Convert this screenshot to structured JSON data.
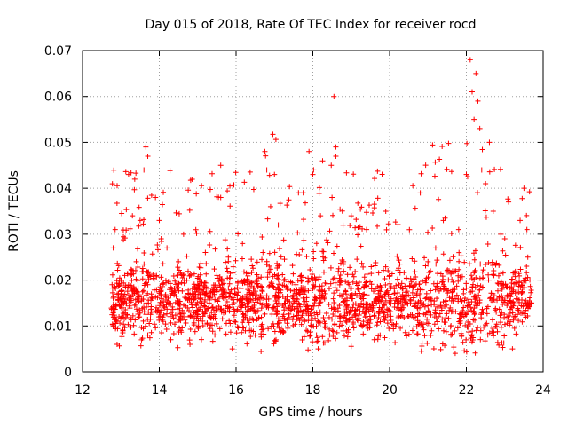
{
  "chart_data": {
    "type": "scatter",
    "title": "Day 015 of 2018, Rate Of TEC Index for receiver rocd",
    "xlabel": "GPS time / hours",
    "ylabel": "ROTI / TECUs",
    "xlim": [
      12,
      24
    ],
    "ylim": [
      0,
      0.07
    ],
    "xticks": [
      "12",
      "14",
      "16",
      "18",
      "20",
      "22",
      "24"
    ],
    "yticks": [
      "0",
      "0.01",
      "0.02",
      "0.03",
      "0.04",
      "0.05",
      "0.06",
      "0.07"
    ],
    "grid": true,
    "legend": "none",
    "marker": "+",
    "series": [
      {
        "name": "ROTI",
        "color": "#ff0000",
        "x_range": [
          12.75,
          23.7
        ],
        "points": [
          [
            12.8,
            0.027
          ],
          [
            12.85,
            0.031
          ],
          [
            12.9,
            0.011
          ],
          [
            12.9,
            0.006
          ],
          [
            12.95,
            0.019
          ],
          [
            13.0,
            0.016
          ],
          [
            13.1,
            0.021
          ],
          [
            13.2,
            0.043
          ],
          [
            13.3,
            0.034
          ],
          [
            13.4,
            0.024
          ],
          [
            13.5,
            0.033
          ],
          [
            13.6,
            0.044
          ],
          [
            13.65,
            0.049
          ],
          [
            13.7,
            0.047
          ],
          [
            13.7,
            0.008
          ],
          [
            13.9,
            0.038
          ],
          [
            14.0,
            0.033
          ],
          [
            14.05,
            0.029
          ],
          [
            14.1,
            0.011
          ],
          [
            14.2,
            0.027
          ],
          [
            14.3,
            0.007
          ],
          [
            14.5,
            0.024
          ],
          [
            14.7,
            0.016
          ],
          [
            14.8,
            0.006
          ],
          [
            15.0,
            0.019
          ],
          [
            15.2,
            0.026
          ],
          [
            15.3,
            0.015
          ],
          [
            15.5,
            0.021
          ],
          [
            15.6,
            0.045
          ],
          [
            15.6,
            0.038
          ],
          [
            15.8,
            0.025
          ],
          [
            15.9,
            0.005
          ],
          [
            16.0,
            0.017
          ],
          [
            16.2,
            0.012
          ],
          [
            16.3,
            0.019
          ],
          [
            16.5,
            0.008
          ],
          [
            16.6,
            0.016
          ],
          [
            16.7,
            0.026
          ],
          [
            16.75,
            0.048
          ],
          [
            16.8,
            0.044
          ],
          [
            16.9,
            0.036
          ],
          [
            17.0,
            0.043
          ],
          [
            17.1,
            0.032
          ],
          [
            17.2,
            0.009
          ],
          [
            17.5,
            0.015
          ],
          [
            17.7,
            0.021
          ],
          [
            17.9,
            0.048
          ],
          [
            18.0,
            0.043
          ],
          [
            18.1,
            0.028
          ],
          [
            18.2,
            0.034
          ],
          [
            18.3,
            0.011
          ],
          [
            18.5,
            0.038
          ],
          [
            18.55,
            0.06
          ],
          [
            18.6,
            0.049
          ],
          [
            18.6,
            0.047
          ],
          [
            18.8,
            0.024
          ],
          [
            19.0,
            0.034
          ],
          [
            19.2,
            0.018
          ],
          [
            19.4,
            0.031
          ],
          [
            19.6,
            0.007
          ],
          [
            19.9,
            0.035
          ],
          [
            20.0,
            0.021
          ],
          [
            20.3,
            0.014
          ],
          [
            20.6,
            0.009
          ],
          [
            20.8,
            0.039
          ],
          [
            21.0,
            0.024
          ],
          [
            21.2,
            0.027
          ],
          [
            21.4,
            0.033
          ],
          [
            21.6,
            0.008
          ],
          [
            21.8,
            0.031
          ],
          [
            22.0,
            0.043
          ],
          [
            22.1,
            0.068
          ],
          [
            22.15,
            0.061
          ],
          [
            22.2,
            0.055
          ],
          [
            22.25,
            0.065
          ],
          [
            22.3,
            0.059
          ],
          [
            22.35,
            0.053
          ],
          [
            22.4,
            0.044
          ],
          [
            22.5,
            0.041
          ],
          [
            22.7,
            0.035
          ],
          [
            22.9,
            0.03
          ],
          [
            23.0,
            0.029
          ],
          [
            23.1,
            0.037
          ],
          [
            23.2,
            0.005
          ],
          [
            23.4,
            0.033
          ],
          [
            23.5,
            0.04
          ],
          [
            23.6,
            0.025
          ],
          [
            23.7,
            0.015
          ]
        ]
      }
    ]
  }
}
